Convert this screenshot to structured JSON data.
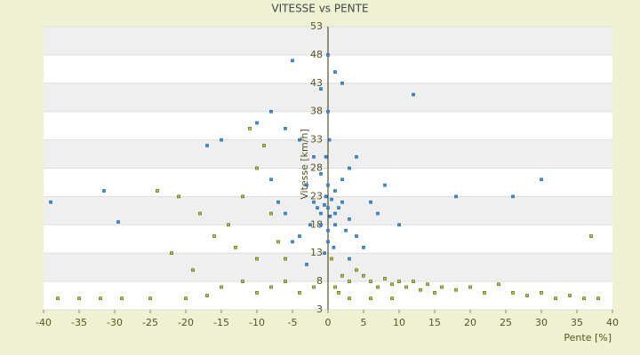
{
  "chart_data": {
    "type": "scatter",
    "title": "VITESSE vs PENTE",
    "x_label": "Pente [%]",
    "y_label": "Vitesse [km/h]",
    "xlim": [
      -40,
      40
    ],
    "xticks": [
      -40,
      -35,
      -30,
      -25,
      -20,
      -15,
      -10,
      -5,
      0,
      5,
      10,
      15,
      20,
      25,
      30,
      35,
      40
    ],
    "ylim": [
      3,
      53
    ],
    "yticks": [
      3,
      8,
      13,
      18,
      23,
      28,
      33,
      38,
      43,
      48,
      53
    ],
    "grid": true,
    "series": [
      {
        "color": "#3a8fd8",
        "marker_edge": "#1f5f9f",
        "x": [
          -39,
          -31.5,
          -29.5,
          -5,
          12,
          30,
          26,
          18,
          -17,
          -15,
          -10,
          -8,
          -6,
          -4,
          -2,
          -1,
          0,
          1,
          2,
          3,
          4,
          -3,
          -2,
          -1,
          0,
          1,
          2,
          3,
          -1,
          0,
          1,
          0.5,
          -0.5,
          0.3,
          -0.3,
          1.5,
          -1.5,
          2.5,
          -2.5,
          4,
          -4,
          5,
          -5,
          6,
          -6,
          7,
          -7,
          10,
          -8,
          8,
          0,
          -1,
          1,
          2,
          0,
          -0.5,
          0.8,
          3,
          -3,
          0,
          -0.3,
          0.2
        ],
        "values": [
          22,
          24,
          18.5,
          47,
          41,
          26,
          23,
          23,
          32,
          33,
          36,
          38,
          35,
          33,
          30,
          27,
          25,
          24,
          26,
          28,
          30,
          25,
          22,
          20,
          21,
          20,
          22,
          19,
          18,
          17,
          18,
          22.5,
          21.5,
          19.5,
          23,
          21,
          21,
          17,
          18,
          16,
          16,
          14,
          15,
          22,
          20,
          20,
          22,
          18,
          26,
          25,
          38,
          42,
          45,
          43,
          15,
          13,
          14,
          12,
          11,
          48,
          30,
          33
        ]
      },
      {
        "color": "#b8c828",
        "marker_edge": "#4a5010",
        "x": [
          -38,
          -35,
          -32,
          -29,
          -25,
          -20,
          -17,
          -15,
          -12,
          -10,
          -8,
          -6,
          -4,
          -2,
          -19,
          -22,
          -18,
          -14,
          -12,
          -10,
          -9,
          -11,
          -8,
          -7,
          -6,
          -13,
          -16,
          -21,
          -24,
          -10,
          1,
          2,
          3,
          4,
          5,
          6,
          7,
          8,
          9,
          10,
          11,
          12,
          13,
          14,
          15,
          16,
          18,
          20,
          22,
          24,
          26,
          28,
          30,
          32,
          34,
          36,
          38,
          37,
          0.5,
          1.5,
          3,
          6,
          9
        ],
        "values": [
          5,
          5,
          5,
          5,
          5,
          5,
          5.5,
          7,
          8,
          6,
          7,
          8,
          6,
          7,
          10,
          13,
          20,
          18,
          23,
          28,
          32,
          35,
          20,
          15,
          12,
          14,
          16,
          23,
          24,
          12,
          7,
          9,
          8,
          10,
          9,
          8,
          7,
          8.5,
          7.5,
          8,
          7,
          8,
          6.5,
          7.5,
          6,
          7,
          6.5,
          7,
          6,
          7.5,
          6,
          5.5,
          6,
          5,
          5.5,
          5,
          5,
          16,
          12,
          6,
          5,
          5,
          5
        ]
      }
    ]
  }
}
